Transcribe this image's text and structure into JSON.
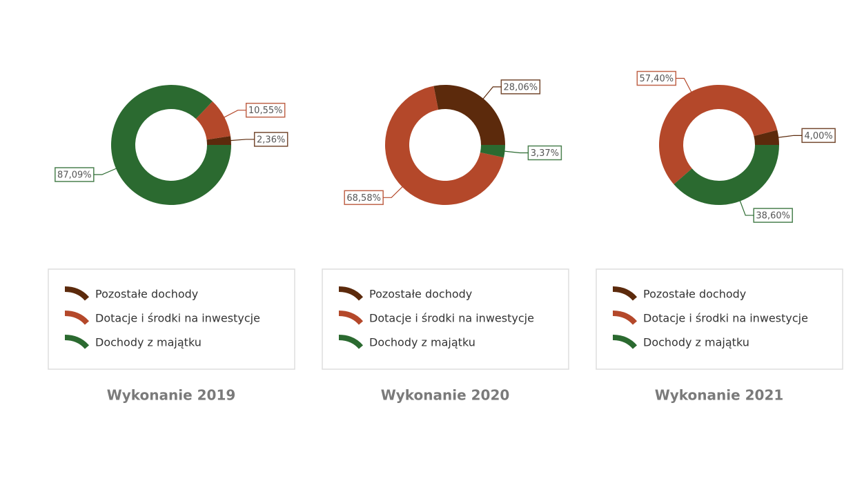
{
  "chart_data": [
    {
      "type": "pie",
      "title": "Wykonanie 2019",
      "categories": [
        "Pozostałe dochody",
        "Dotacje i środki na inwestycje",
        "Dochody z majątku"
      ],
      "values": [
        2.36,
        10.55,
        87.09
      ],
      "value_labels": [
        "2,36%",
        "10,55%",
        "87,09%"
      ],
      "colors": [
        "#5c2a0c",
        "#b4482a",
        "#2b6a30"
      ]
    },
    {
      "type": "pie",
      "title": "Wykonanie 2020",
      "categories": [
        "Pozostałe dochody",
        "Dotacje i środki na inwestycje",
        "Dochody z majątku"
      ],
      "values": [
        28.06,
        68.58,
        3.37
      ],
      "value_labels": [
        "28,06%",
        "68,58%",
        "3,37%"
      ],
      "colors": [
        "#5c2a0c",
        "#b4482a",
        "#2b6a30"
      ]
    },
    {
      "type": "pie",
      "title": "Wykonanie 2021",
      "categories": [
        "Pozostałe dochody",
        "Dotacje i środki na inwestycje",
        "Dochody z majątku"
      ],
      "values": [
        4.0,
        57.4,
        38.6
      ],
      "value_labels": [
        "4,00%",
        "57,40%",
        "38,60%"
      ],
      "colors": [
        "#5c2a0c",
        "#b4482a",
        "#2b6a30"
      ]
    }
  ]
}
